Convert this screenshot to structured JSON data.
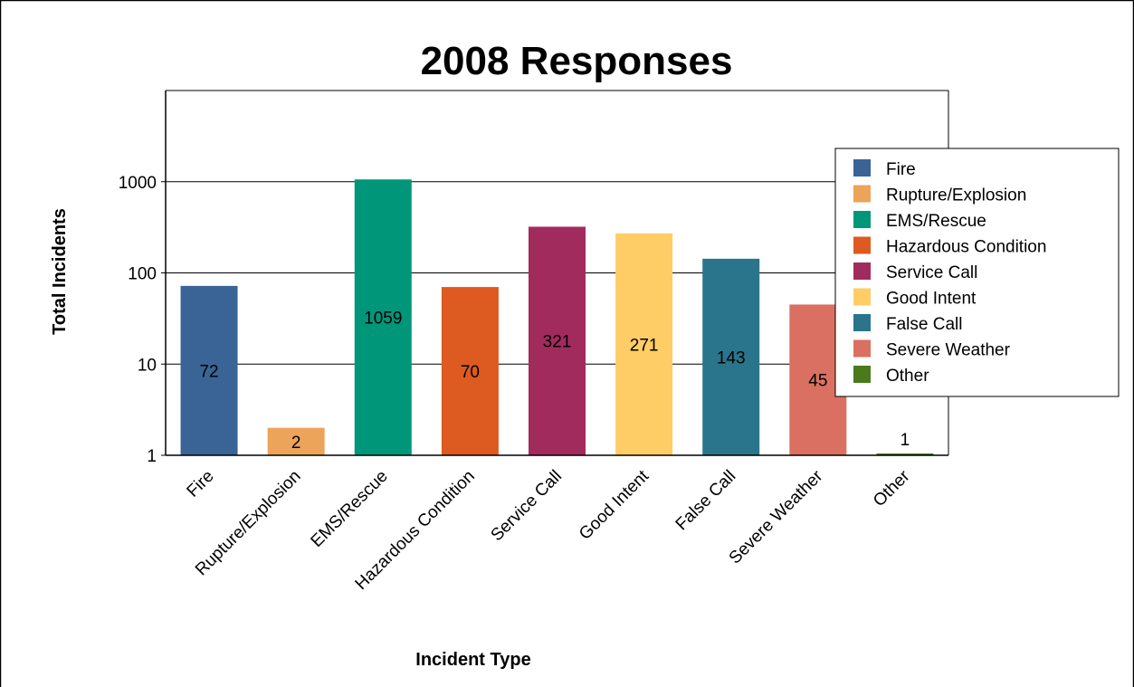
{
  "chart_data": {
    "type": "bar",
    "title": "2008 Responses",
    "xlabel": "Incident Type",
    "ylabel": "Total Incidents",
    "y_scale": "log",
    "ylim": [
      1,
      10000
    ],
    "y_ticks": [
      "1",
      "10",
      "100",
      "1000"
    ],
    "grid": true,
    "legend_position": "right",
    "categories": [
      "Fire",
      "Rupture/Explosion",
      "EMS/Rescue",
      "Hazardous Condition",
      "Service Call",
      "Good Intent",
      "False Call",
      "Severe Weather",
      "Other"
    ],
    "values": [
      72,
      2,
      1059,
      70,
      321,
      271,
      143,
      45,
      1
    ],
    "data_labels": [
      "72",
      "2",
      "1059",
      "70",
      "321",
      "271",
      "143",
      "45",
      "1"
    ],
    "colors": [
      "#3a6496",
      "#eca35a",
      "#00967a",
      "#dd5a20",
      "#a22b5e",
      "#fecd66",
      "#2a758b",
      "#da7061",
      "#4a7a1a"
    ]
  }
}
